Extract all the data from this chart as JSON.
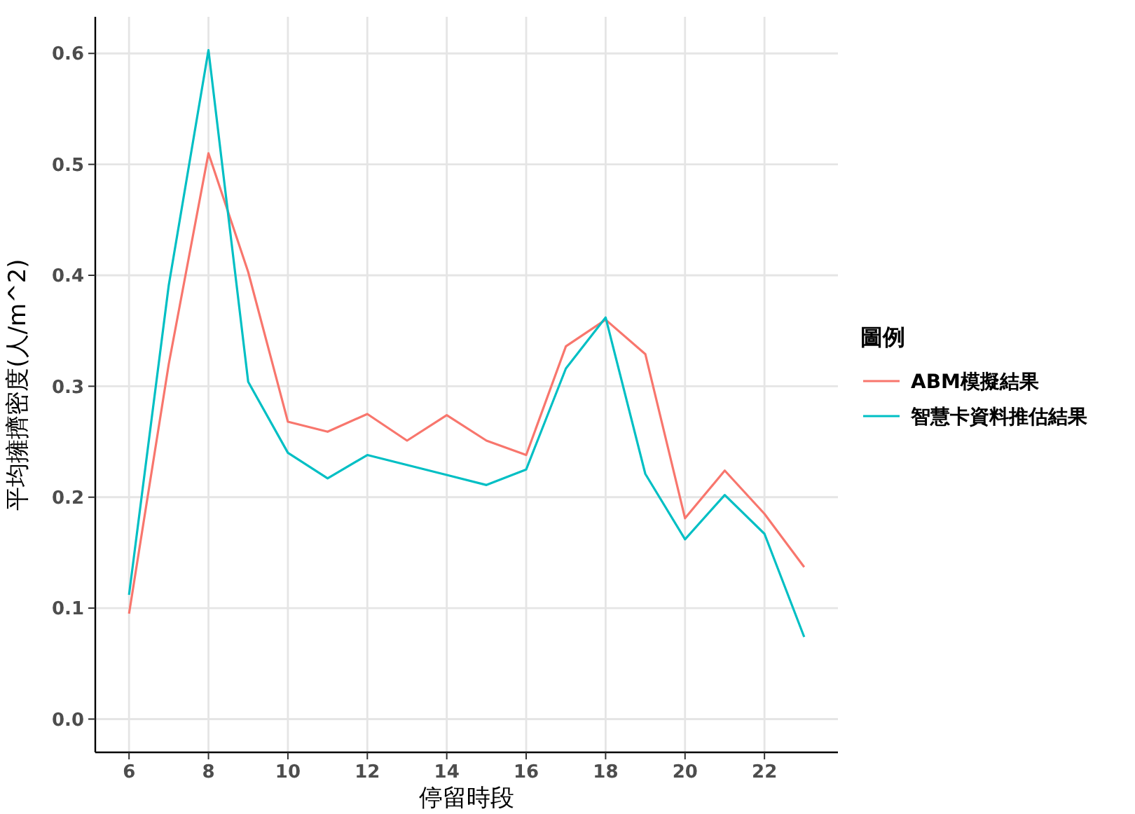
{
  "chart_data": {
    "type": "line",
    "xlabel": "停留時段",
    "ylabel": "平均擁擠密度(人/m^2)",
    "legend_title": "圖例",
    "x": [
      6,
      7,
      8,
      9,
      10,
      11,
      12,
      13,
      14,
      15,
      16,
      17,
      18,
      19,
      20,
      21,
      22,
      23
    ],
    "series": [
      {
        "name": "ABM模擬結果",
        "color": "#f8766d",
        "values": [
          0.095,
          0.32,
          0.51,
          0.403,
          0.268,
          0.259,
          0.275,
          0.251,
          0.274,
          0.251,
          0.238,
          0.336,
          0.36,
          0.329,
          0.181,
          0.224,
          0.185,
          0.137
        ]
      },
      {
        "name": "智慧卡資料推估結果",
        "color": "#00bfc4",
        "values": [
          0.112,
          0.391,
          0.603,
          0.304,
          0.24,
          0.217,
          0.238,
          0.229,
          0.22,
          0.211,
          0.225,
          0.316,
          0.362,
          0.221,
          0.162,
          0.202,
          0.167,
          0.074
        ]
      }
    ],
    "xlim": [
      5.15,
      23.85
    ],
    "xticks": [
      6,
      8,
      10,
      12,
      14,
      16,
      18,
      20,
      22
    ],
    "ylim": [
      -0.03,
      0.633
    ],
    "yticks": [
      {
        "value": 0,
        "label": "0.0"
      },
      0.1,
      0.2,
      0.3,
      0.4,
      0.5,
      0.6
    ],
    "grid": true,
    "legend": "right",
    "line_style": "solid",
    "marker": "none"
  }
}
